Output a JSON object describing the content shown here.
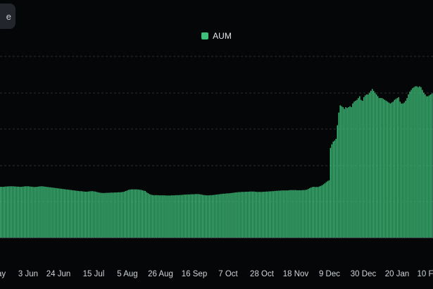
{
  "top_button": {
    "label": "e"
  },
  "chart_data": {
    "type": "bar",
    "legend": {
      "position": "top-center",
      "entries": [
        {
          "name": "AUM",
          "color": "#3ec07a"
        }
      ]
    },
    "grid": "horizontal-dashed",
    "ylim": [
      0,
      1
    ],
    "x_tick_labels": [
      "ay",
      "3 Jun",
      "24 Jun",
      "15 Jul",
      "5 Aug",
      "26 Aug",
      "16 Sep",
      "7 Oct",
      "28 Oct",
      "18 Nov",
      "9 Dec",
      "30 Dec",
      "20 Jan",
      "10 F"
    ],
    "series": [
      {
        "name": "AUM",
        "color": "#3ec07a",
        "values": [
          0.28,
          0.28,
          0.28,
          0.281,
          0.282,
          0.282,
          0.283,
          0.283,
          0.283,
          0.283,
          0.282,
          0.282,
          0.281,
          0.281,
          0.28,
          0.28,
          0.281,
          0.282,
          0.283,
          0.283,
          0.283,
          0.282,
          0.281,
          0.28,
          0.279,
          0.279,
          0.28,
          0.281,
          0.282,
          0.283,
          0.283,
          0.282,
          0.281,
          0.28,
          0.279,
          0.278,
          0.277,
          0.276,
          0.275,
          0.274,
          0.273,
          0.272,
          0.271,
          0.27,
          0.269,
          0.268,
          0.267,
          0.266,
          0.265,
          0.264,
          0.263,
          0.262,
          0.261,
          0.26,
          0.259,
          0.258,
          0.257,
          0.256,
          0.256,
          0.255,
          0.254,
          0.253,
          0.253,
          0.254,
          0.255,
          0.256,
          0.256,
          0.255,
          0.254,
          0.252,
          0.25,
          0.248,
          0.247,
          0.246,
          0.246,
          0.246,
          0.247,
          0.247,
          0.247,
          0.248,
          0.248,
          0.248,
          0.249,
          0.249,
          0.249,
          0.25,
          0.25,
          0.251,
          0.252,
          0.254,
          0.257,
          0.26,
          0.263,
          0.265,
          0.266,
          0.266,
          0.266,
          0.266,
          0.266,
          0.265,
          0.264,
          0.263,
          0.261,
          0.259,
          0.257,
          0.25,
          0.245,
          0.24,
          0.237,
          0.235,
          0.234,
          0.234,
          0.234,
          0.234,
          0.233,
          0.233,
          0.233,
          0.233,
          0.233,
          0.232,
          0.232,
          0.232,
          0.232,
          0.233,
          0.233,
          0.233,
          0.234,
          0.234,
          0.234,
          0.235,
          0.235,
          0.236,
          0.237,
          0.237,
          0.238,
          0.238,
          0.238,
          0.239,
          0.239,
          0.239,
          0.24,
          0.24,
          0.24,
          0.239,
          0.238,
          0.236,
          0.235,
          0.234,
          0.233,
          0.233,
          0.233,
          0.234,
          0.234,
          0.235,
          0.236,
          0.237,
          0.238,
          0.239,
          0.24,
          0.241,
          0.242,
          0.242,
          0.243,
          0.244,
          0.244,
          0.245,
          0.246,
          0.247,
          0.248,
          0.249,
          0.25,
          0.251,
          0.251,
          0.252,
          0.252,
          0.252,
          0.253,
          0.253,
          0.253,
          0.254,
          0.254,
          0.254,
          0.254,
          0.253,
          0.252,
          0.252,
          0.252,
          0.252,
          0.252,
          0.253,
          0.253,
          0.254,
          0.254,
          0.255,
          0.255,
          0.256,
          0.256,
          0.257,
          0.258,
          0.258,
          0.259,
          0.259,
          0.26,
          0.26,
          0.26,
          0.26,
          0.26,
          0.261,
          0.262,
          0.262,
          0.262,
          0.262,
          0.262,
          0.261,
          0.261,
          0.261,
          0.261,
          0.262,
          0.262,
          0.263,
          0.264,
          0.268,
          0.272,
          0.276,
          0.279,
          0.28,
          0.279,
          0.279,
          0.279,
          0.282,
          0.285,
          0.289,
          0.294,
          0.3,
          0.306,
          0.312,
          0.316,
          0.495,
          0.515,
          0.53,
          0.535,
          0.545,
          0.62,
          0.69,
          0.73,
          0.725,
          0.72,
          0.71,
          0.72,
          0.715,
          0.72,
          0.725,
          0.72,
          0.74,
          0.75,
          0.755,
          0.76,
          0.77,
          0.78,
          0.76,
          0.755,
          0.775,
          0.785,
          0.79,
          0.79,
          0.8,
          0.81,
          0.82,
          0.81,
          0.8,
          0.79,
          0.78,
          0.77,
          0.77,
          0.77,
          0.765,
          0.76,
          0.755,
          0.75,
          0.745,
          0.74,
          0.745,
          0.75,
          0.76,
          0.765,
          0.77,
          0.775,
          0.75,
          0.74,
          0.74,
          0.745,
          0.755,
          0.77,
          0.79,
          0.805,
          0.815,
          0.825,
          0.83,
          0.835,
          0.835,
          0.83,
          0.835,
          0.83,
          0.815,
          0.8,
          0.79,
          0.78,
          0.78,
          0.785,
          0.79,
          0.795
        ]
      }
    ]
  }
}
